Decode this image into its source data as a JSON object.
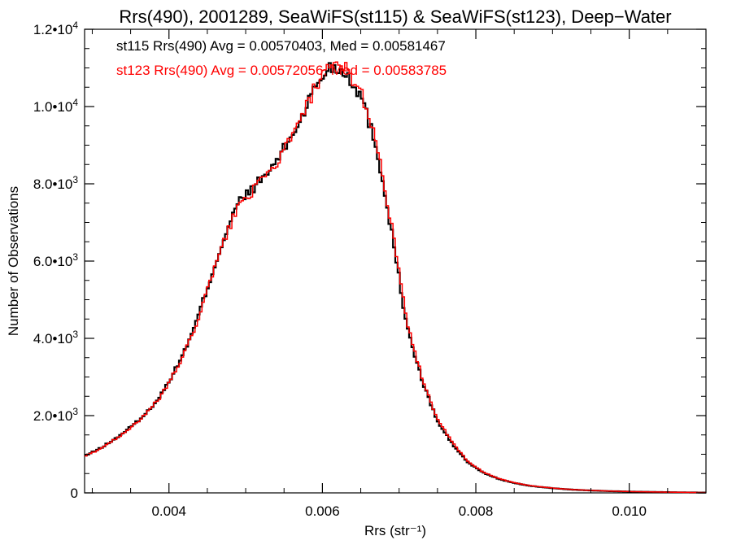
{
  "chart_data": {
    "type": "line",
    "title": "Rrs(490), 2001289, SeaWiFS(st115) & SeaWiFS(st123), Deep−Water",
    "xlabel": "Rrs (str⁻¹)",
    "ylabel": "Number of Observations",
    "xlim": [
      0.0029,
      0.011
    ],
    "ylim": [
      0,
      12000
    ],
    "grid": false,
    "x_ticks": [
      {
        "value": 0.004,
        "label": "0.004"
      },
      {
        "value": 0.006,
        "label": "0.006"
      },
      {
        "value": 0.008,
        "label": "0.008"
      },
      {
        "value": 0.01,
        "label": "0.010"
      }
    ],
    "y_ticks": [
      {
        "value": 0,
        "mant": "0",
        "exp": ""
      },
      {
        "value": 2000,
        "mant": "2.0•10",
        "exp": "3"
      },
      {
        "value": 4000,
        "mant": "4.0•10",
        "exp": "3"
      },
      {
        "value": 6000,
        "mant": "6.0•10",
        "exp": "3"
      },
      {
        "value": 8000,
        "mant": "8.0•10",
        "exp": "3"
      },
      {
        "value": 10000,
        "mant": "1.0•10",
        "exp": "4"
      },
      {
        "value": 12000,
        "mant": "1.2•10",
        "exp": "4"
      }
    ],
    "annotations": [
      {
        "text": "st115 Rrs(490) Avg = 0.00570403, Med = 0.00581467",
        "color": "#000000"
      },
      {
        "text": "st123 Rrs(490) Avg = 0.00572056, Med = 0.00583785",
        "color": "#ff0000"
      }
    ],
    "x": [
      0.0029,
      0.0031,
      0.0033,
      0.0035,
      0.0037,
      0.0039,
      0.0041,
      0.0043,
      0.0045,
      0.0047,
      0.0049,
      0.0051,
      0.0053,
      0.0055,
      0.0057,
      0.0059,
      0.0061,
      0.0063,
      0.0065,
      0.0067,
      0.0069,
      0.0071,
      0.0073,
      0.0075,
      0.0077,
      0.0079,
      0.0081,
      0.0083,
      0.0085,
      0.0087,
      0.0089,
      0.0091,
      0.0093,
      0.0095,
      0.0097,
      0.0099,
      0.0101,
      0.0103,
      0.0105,
      0.0107,
      0.0109,
      0.011
    ],
    "series": [
      {
        "name": "st115",
        "color": "#000000",
        "values": [
          950,
          1150,
          1400,
          1700,
          2050,
          2550,
          3250,
          4100,
          5300,
          6500,
          7500,
          7900,
          8300,
          8900,
          9600,
          10500,
          11050,
          10900,
          10300,
          9000,
          6800,
          4300,
          2900,
          1850,
          1250,
          780,
          520,
          360,
          255,
          185,
          140,
          105,
          80,
          62,
          48,
          38,
          30,
          24,
          18,
          13,
          9,
          7
        ]
      },
      {
        "name": "st123",
        "color": "#ff0000",
        "values": [
          940,
          1140,
          1390,
          1690,
          2030,
          2520,
          3200,
          4050,
          5230,
          6430,
          7430,
          7840,
          8240,
          8860,
          9570,
          10480,
          11000,
          11010,
          10400,
          9150,
          6950,
          4420,
          2980,
          1900,
          1290,
          800,
          535,
          370,
          262,
          190,
          145,
          108,
          82,
          64,
          50,
          39,
          31,
          25,
          19,
          14,
          10,
          8
        ]
      }
    ]
  }
}
